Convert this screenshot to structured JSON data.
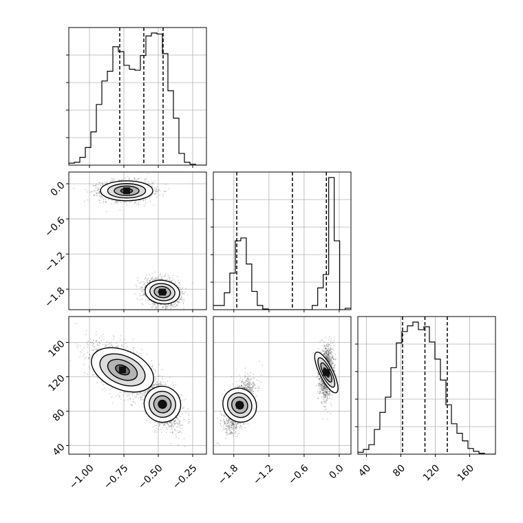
{
  "chart_data": {
    "type": "corner",
    "title": "",
    "grid": true,
    "params": [
      {
        "ticks": [
          "−1.00",
          "−0.75",
          "−0.50",
          "−0.25"
        ],
        "tick_values": [
          -1.0,
          -0.75,
          -0.5,
          -0.25
        ],
        "range": [
          -1.15,
          -0.15
        ]
      },
      {
        "ticks": [
          "−1.8",
          "−1.2",
          "−0.6",
          "0.0"
        ],
        "tick_values": [
          -1.8,
          -1.2,
          -0.6,
          0.0
        ],
        "range": [
          -2.15,
          0.2
        ]
      },
      {
        "ticks": [
          "40",
          "80",
          "120",
          "160"
        ],
        "tick_values": [
          40,
          80,
          120,
          160
        ],
        "range": [
          30,
          190
        ]
      }
    ],
    "histograms": [
      {
        "param": 0,
        "quantiles": [
          -0.78,
          -0.605,
          -0.465
        ],
        "edges": [
          -1.15,
          -1.11,
          -1.07,
          -1.03,
          -0.99,
          -0.95,
          -0.91,
          -0.87,
          -0.83,
          -0.79,
          -0.75,
          -0.71,
          -0.67,
          -0.63,
          -0.59,
          -0.55,
          -0.51,
          -0.47,
          -0.43,
          -0.39,
          -0.35,
          -0.31,
          -0.27,
          -0.23,
          -0.19,
          -0.15
        ],
        "counts": [
          2,
          3,
          8,
          18,
          34,
          62,
          86,
          96,
          121,
          116,
          102,
          98,
          97,
          112,
          132,
          135,
          134,
          114,
          76,
          48,
          12,
          3,
          1,
          0,
          0
        ]
      },
      {
        "param": 1,
        "quantiles": [
          -1.75,
          -0.8,
          -0.22
        ],
        "edges": [
          -2.15,
          -2.0562,
          -1.9624,
          -1.8686,
          -1.7748,
          -1.681,
          -1.5872,
          -1.4934,
          -1.3996,
          -1.3058,
          -1.212,
          -1.1182,
          -1.0244,
          -0.9306,
          -0.8368,
          -0.743,
          -0.6492,
          -0.5554,
          -0.4616,
          -0.3678,
          -0.274,
          -0.1802,
          -0.0864,
          0.0074,
          0.1012,
          0.2
        ],
        "counts": [
          6,
          6,
          24,
          52,
          98,
          102,
          65,
          26,
          6,
          1,
          0,
          0,
          0,
          0,
          0,
          0,
          0,
          0,
          6,
          31,
          50,
          188,
          98,
          0,
          2
        ]
      },
      {
        "param": 2,
        "quantiles": [
          82,
          108,
          134
        ],
        "edges": [
          30,
          36.4,
          42.8,
          49.2,
          55.6,
          62,
          68.4,
          74.8,
          81.2,
          87.6,
          94,
          100.4,
          106.8,
          113.2,
          119.6,
          126,
          132.4,
          138.8,
          145.2,
          151.6,
          158,
          164.4,
          170.8,
          177.2,
          183.6,
          190
        ],
        "counts": [
          2,
          5,
          10,
          26,
          44,
          60,
          91,
          117,
          129,
          135,
          139,
          131,
          134,
          118,
          100,
          78,
          52,
          32,
          22,
          14,
          6,
          3,
          1,
          0,
          0
        ]
      }
    ],
    "pairs": [
      {
        "x_param": 0,
        "y_param": 1,
        "modes": [
          {
            "center": [
              -0.73,
              -0.12
            ],
            "spread": [
              0.095,
              0.085
            ],
            "corr": 0.0,
            "weight": 0.5
          },
          {
            "center": [
              -0.47,
              -1.85
            ],
            "spread": [
              0.06,
              0.11
            ],
            "corr": -0.2,
            "weight": 0.5
          }
        ]
      },
      {
        "x_param": 0,
        "y_param": 2,
        "modes": [
          {
            "center": [
              -0.76,
              128
            ],
            "spread": [
              0.105,
              15
            ],
            "corr": -0.55,
            "weight": 0.5
          },
          {
            "center": [
              -0.47,
              88
            ],
            "spread": [
              0.06,
              13
            ],
            "corr": -0.45,
            "weight": 0.5
          }
        ]
      },
      {
        "x_param": 1,
        "y_param": 2,
        "modes": [
          {
            "center": [
              -1.7,
              87
            ],
            "spread": [
              0.12,
              14
            ],
            "corr": 0.6,
            "weight": 0.5
          },
          {
            "center": [
              -0.22,
              125
            ],
            "spread": [
              0.055,
              14
            ],
            "corr": 0.15,
            "weight": 0.5
          }
        ]
      }
    ]
  }
}
